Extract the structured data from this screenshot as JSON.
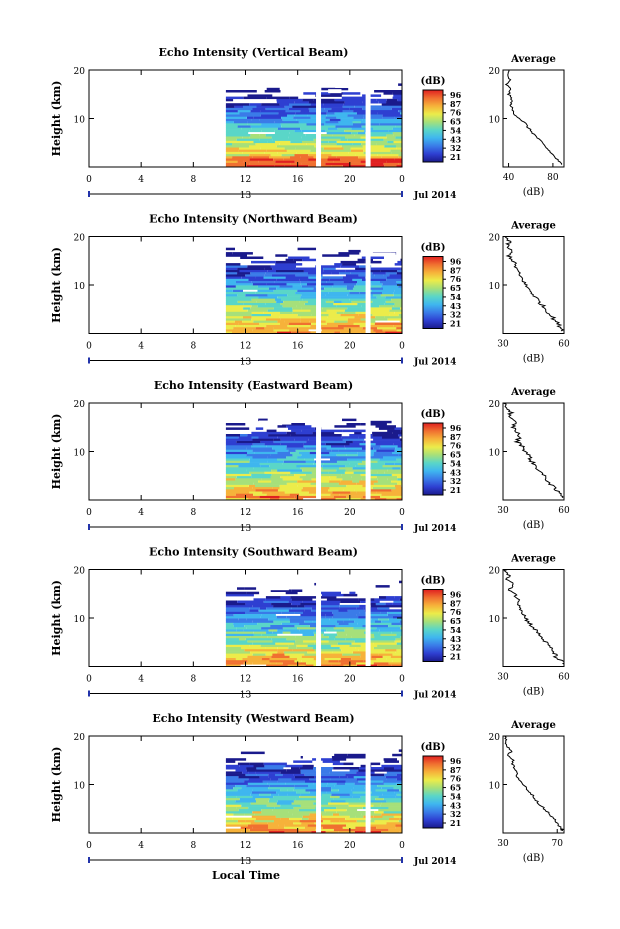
{
  "figure": {
    "date_label": "Jul 2014",
    "xaxis_title": "Local Time",
    "day_label": "13",
    "colorbar_unit": "(dB)",
    "colorbar_ticks": [
      "96",
      "87",
      "76",
      "65",
      "54",
      "43",
      "32",
      "21"
    ],
    "colormap": [
      "#1a1a8c",
      "#2e3fd1",
      "#3a7be8",
      "#3fb6ef",
      "#5ad6c8",
      "#a6e07a",
      "#ecec4a",
      "#f6b23a",
      "#f07030",
      "#e02020"
    ],
    "avg_title": "Average",
    "avg_xlabel": "(dB)"
  },
  "chart_data": [
    {
      "type": "heatmap",
      "title": "Echo Intensity (Vertical Beam)",
      "ylabel": "Height (km)",
      "x_ticks": [
        "0",
        "4",
        "8",
        "12",
        "16",
        "20",
        "0"
      ],
      "y_ticks": [
        "20",
        "10"
      ],
      "xlim": [
        0,
        24
      ],
      "ylim": [
        0,
        20
      ],
      "data_start_hour": 10.5,
      "gaps_hours": [
        17.6,
        21.4
      ],
      "avg_profile": {
        "xlim": [
          35,
          90
        ],
        "x_ticks": [
          "40",
          "80"
        ],
        "y_ticks": [
          "20",
          "10"
        ],
        "points": [
          [
            40,
            20
          ],
          [
            39,
            19
          ],
          [
            41,
            18
          ],
          [
            38,
            17
          ],
          [
            42,
            16
          ],
          [
            40,
            15
          ],
          [
            43,
            14
          ],
          [
            42,
            13
          ],
          [
            43,
            12
          ],
          [
            45,
            11
          ],
          [
            50,
            10
          ],
          [
            55,
            9
          ],
          [
            58,
            8
          ],
          [
            62,
            7
          ],
          [
            66,
            6
          ],
          [
            70,
            5
          ],
          [
            74,
            4
          ],
          [
            78,
            3
          ],
          [
            82,
            2
          ],
          [
            86,
            1
          ],
          [
            88,
            0.5
          ]
        ]
      }
    },
    {
      "type": "heatmap",
      "title": "Echo Intensity (Northward Beam)",
      "ylabel": "Height (km)",
      "x_ticks": [
        "0",
        "4",
        "8",
        "12",
        "16",
        "20",
        "0"
      ],
      "y_ticks": [
        "20",
        "10"
      ],
      "xlim": [
        0,
        24
      ],
      "ylim": [
        0,
        20
      ],
      "data_start_hour": 10.5,
      "gaps_hours": [
        17.6,
        21.4
      ],
      "avg_profile": {
        "xlim": [
          30,
          60
        ],
        "x_ticks": [
          "30",
          "60"
        ],
        "y_ticks": [
          "20",
          "10"
        ],
        "points": [
          [
            31,
            20
          ],
          [
            33,
            19
          ],
          [
            32,
            18
          ],
          [
            34,
            17
          ],
          [
            33,
            16
          ],
          [
            35,
            15
          ],
          [
            36,
            14
          ],
          [
            37,
            13
          ],
          [
            38,
            12
          ],
          [
            40,
            11
          ],
          [
            41,
            10
          ],
          [
            43,
            9
          ],
          [
            45,
            8
          ],
          [
            47,
            7
          ],
          [
            49,
            6
          ],
          [
            51,
            5
          ],
          [
            53,
            4
          ],
          [
            55,
            3
          ],
          [
            57,
            2
          ],
          [
            59,
            1
          ],
          [
            60,
            0.5
          ]
        ]
      }
    },
    {
      "type": "heatmap",
      "title": "Echo Intensity (Eastward Beam)",
      "ylabel": "Height (km)",
      "x_ticks": [
        "0",
        "4",
        "8",
        "12",
        "16",
        "20",
        "0"
      ],
      "y_ticks": [
        "20",
        "10"
      ],
      "xlim": [
        0,
        24
      ],
      "ylim": [
        0,
        20
      ],
      "data_start_hour": 10.5,
      "gaps_hours": [
        17.6,
        21.4
      ],
      "avg_profile": {
        "xlim": [
          30,
          60
        ],
        "x_ticks": [
          "30",
          "60"
        ],
        "y_ticks": [
          "20",
          "10"
        ],
        "points": [
          [
            31,
            20
          ],
          [
            32,
            19
          ],
          [
            34,
            18
          ],
          [
            33,
            17
          ],
          [
            36,
            16
          ],
          [
            35,
            15
          ],
          [
            37,
            14
          ],
          [
            38,
            13
          ],
          [
            37,
            12
          ],
          [
            40,
            11
          ],
          [
            41,
            10
          ],
          [
            43,
            9
          ],
          [
            44,
            8
          ],
          [
            46,
            7
          ],
          [
            48,
            6
          ],
          [
            50,
            5
          ],
          [
            52,
            4
          ],
          [
            54,
            3
          ],
          [
            56,
            2
          ],
          [
            59,
            1
          ],
          [
            60,
            0.5
          ]
        ]
      }
    },
    {
      "type": "heatmap",
      "title": "Echo Intensity (Southward Beam)",
      "ylabel": "Height (km)",
      "x_ticks": [
        "0",
        "4",
        "8",
        "12",
        "16",
        "20",
        "0"
      ],
      "y_ticks": [
        "20",
        "10"
      ],
      "xlim": [
        0,
        24
      ],
      "ylim": [
        0,
        20
      ],
      "data_start_hour": 10.5,
      "gaps_hours": [
        17.6,
        21.4
      ],
      "avg_profile": {
        "xlim": [
          30,
          60
        ],
        "x_ticks": [
          "30",
          "60"
        ],
        "y_ticks": [
          "20",
          "10"
        ],
        "points": [
          [
            31,
            20
          ],
          [
            33,
            19
          ],
          [
            32,
            18
          ],
          [
            35,
            17
          ],
          [
            33,
            16
          ],
          [
            36,
            15
          ],
          [
            37,
            14
          ],
          [
            38,
            13
          ],
          [
            39,
            12
          ],
          [
            40,
            11
          ],
          [
            41,
            10
          ],
          [
            43,
            9
          ],
          [
            45,
            8
          ],
          [
            47,
            7
          ],
          [
            49,
            6
          ],
          [
            51,
            5
          ],
          [
            53,
            4
          ],
          [
            55,
            3
          ],
          [
            56,
            2
          ],
          [
            59,
            1
          ],
          [
            60,
            0.5
          ]
        ]
      }
    },
    {
      "type": "heatmap",
      "title": "Echo Intensity (Westward Beam)",
      "ylabel": "Height (km)",
      "x_ticks": [
        "0",
        "4",
        "8",
        "12",
        "16",
        "20",
        "0"
      ],
      "y_ticks": [
        "20",
        "10"
      ],
      "xlim": [
        0,
        24
      ],
      "ylim": [
        0,
        20
      ],
      "data_start_hour": 10.5,
      "gaps_hours": [
        17.6,
        21.4
      ],
      "avg_profile": {
        "xlim": [
          30,
          75
        ],
        "x_ticks": [
          "30",
          "70"
        ],
        "y_ticks": [
          "20",
          "10"
        ],
        "points": [
          [
            31,
            20
          ],
          [
            33,
            19
          ],
          [
            32,
            18
          ],
          [
            36,
            17
          ],
          [
            34,
            16
          ],
          [
            38,
            15
          ],
          [
            37,
            14
          ],
          [
            39,
            13
          ],
          [
            40,
            12
          ],
          [
            42,
            11
          ],
          [
            45,
            10
          ],
          [
            48,
            9
          ],
          [
            51,
            8
          ],
          [
            54,
            7
          ],
          [
            57,
            6
          ],
          [
            60,
            5
          ],
          [
            64,
            4
          ],
          [
            67,
            3
          ],
          [
            70,
            2
          ],
          [
            73,
            1
          ],
          [
            74,
            0.5
          ]
        ]
      }
    }
  ]
}
